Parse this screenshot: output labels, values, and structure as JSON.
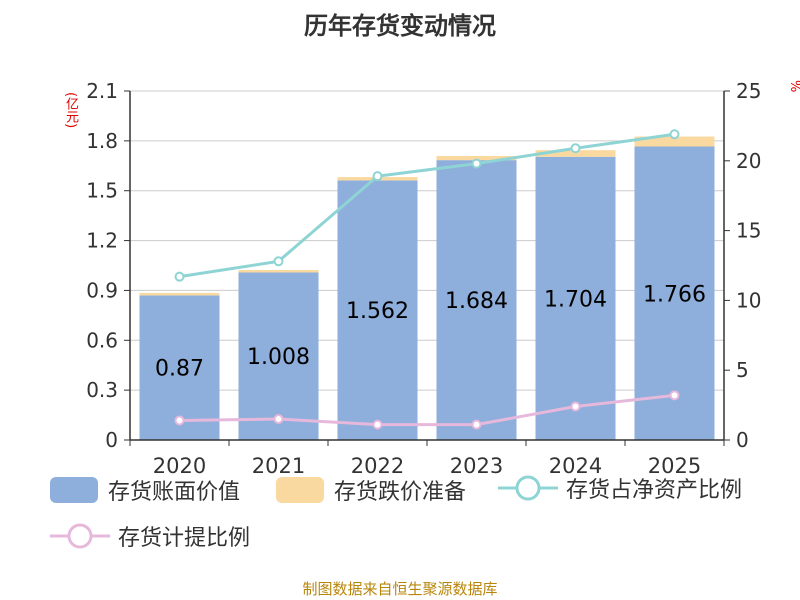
{
  "title": "历年存货变动情况",
  "unit_left": "(亿元)",
  "unit_right": "%",
  "source": "制图数据来自恒生聚源数据库",
  "colors": {
    "bar_main": "#8eaedb",
    "bar_reserve": "#f9d9a0",
    "line_ratio": "#8fd4d4",
    "line_provision": "#e6b8dc",
    "axis": "#333333",
    "grid": "#cccccc"
  },
  "legend": {
    "book_value": "存货账面价值",
    "impairment": "存货跌价准备",
    "net_assets_ratio": "存货占净资产比例",
    "provision_ratio": "存货计提比例"
  },
  "chart_data": {
    "type": "bar",
    "categories": [
      "2020",
      "2021",
      "2022",
      "2023",
      "2024",
      "2025"
    ],
    "left_axis": {
      "ylim": [
        0,
        2.1
      ],
      "ticks": [
        "0",
        "0.3",
        "0.6",
        "0.9",
        "1.2",
        "1.5",
        "1.8",
        "2.1"
      ]
    },
    "right_axis": {
      "ylim": [
        0,
        25
      ],
      "ticks": [
        "0",
        "5",
        "10",
        "15",
        "20",
        "25"
      ]
    },
    "series": [
      {
        "name": "存货账面价值",
        "type": "bar",
        "axis": "left",
        "values": [
          0.87,
          1.008,
          1.562,
          1.684,
          1.704,
          1.766
        ],
        "labels": [
          "0.87",
          "1.008",
          "1.562",
          "1.684",
          "1.704",
          "1.766"
        ]
      },
      {
        "name": "存货跌价准备",
        "type": "bar",
        "axis": "left",
        "stacked": true,
        "values": [
          0.015,
          0.015,
          0.02,
          0.025,
          0.04,
          0.06
        ]
      },
      {
        "name": "存货占净资产比例",
        "type": "line",
        "axis": "right",
        "values": [
          11.7,
          12.8,
          18.9,
          19.8,
          20.9,
          21.9
        ]
      },
      {
        "name": "存货计提比例",
        "type": "line",
        "axis": "right",
        "values": [
          1.4,
          1.5,
          1.1,
          1.1,
          2.4,
          3.2
        ]
      }
    ],
    "grid": true,
    "legend_position": "bottom"
  }
}
